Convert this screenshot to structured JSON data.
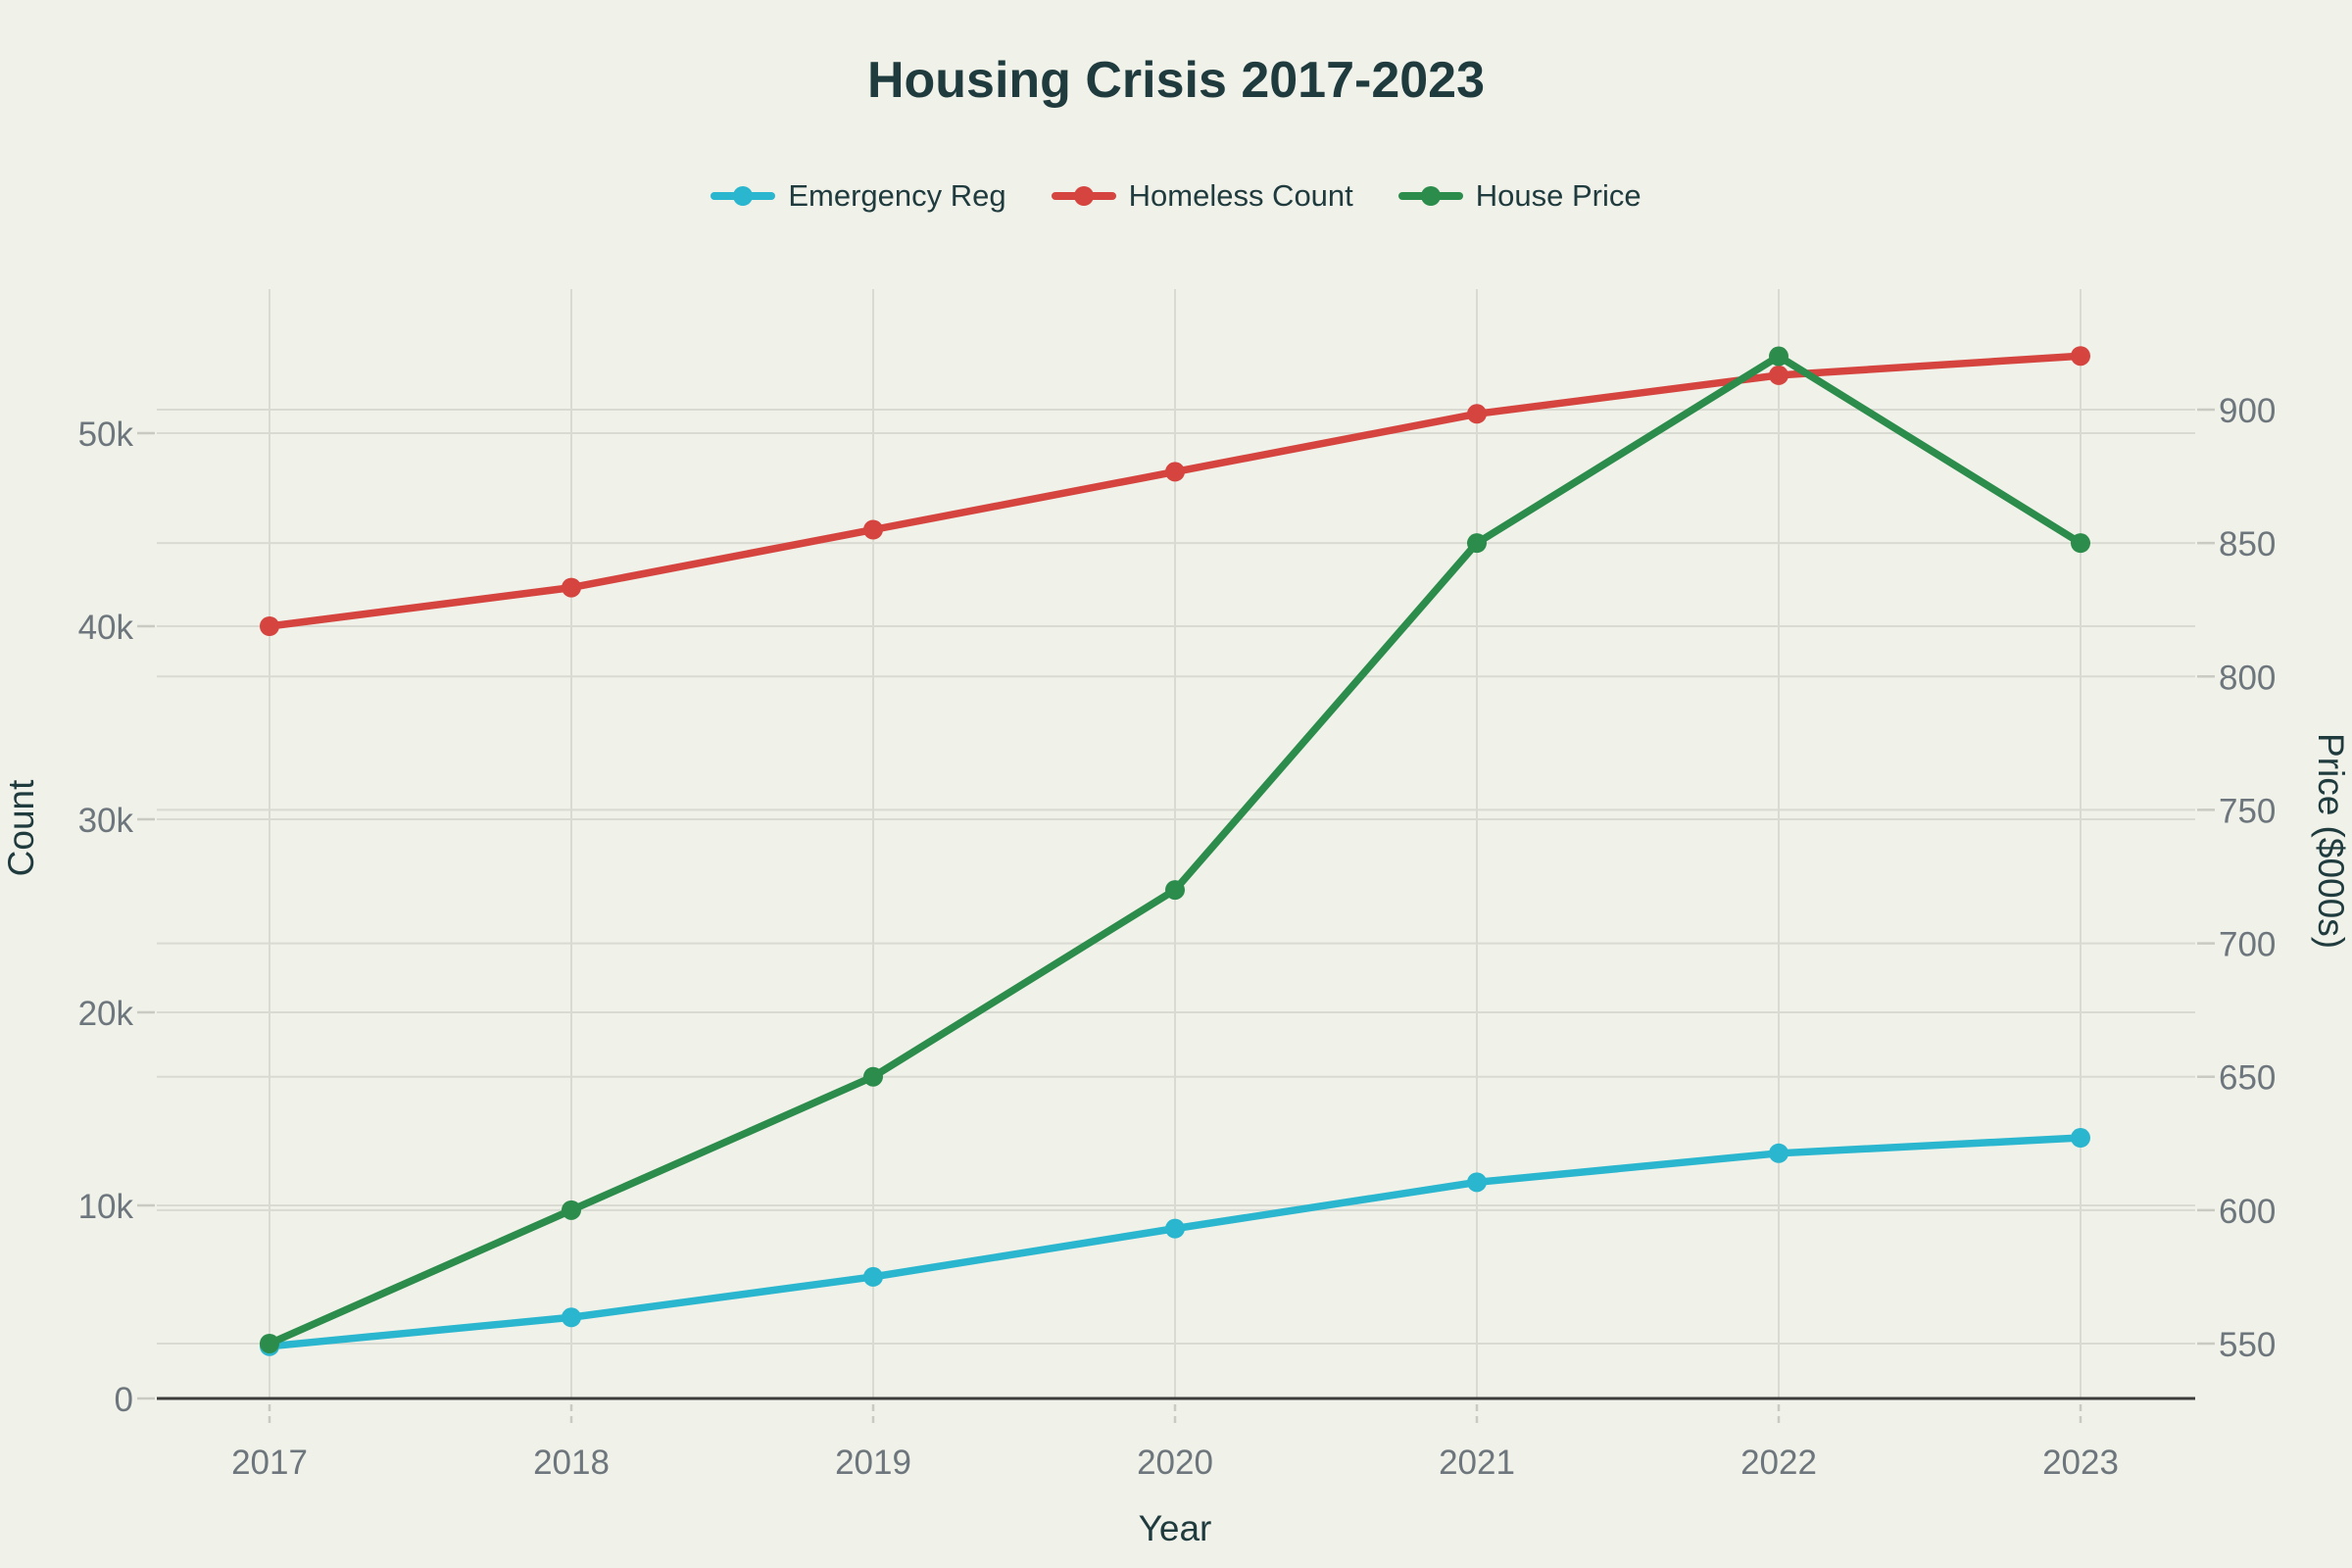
{
  "title": "Housing Crisis 2017-2023",
  "colors": {
    "background": "#f0f1e9",
    "title_text": "#1f3b3e",
    "tick_text": "#6d767c",
    "gridline": "#d9dad1",
    "axis_line": "#3d3d3b"
  },
  "chart_data": {
    "type": "line",
    "title": "Housing Crisis 2017-2023",
    "xlabel": "Year",
    "ylabel_left": "Count",
    "ylabel_right": "Price ($000s)",
    "categories": [
      "2017",
      "2018",
      "2019",
      "2020",
      "2021",
      "2022",
      "2023"
    ],
    "grid": true,
    "legend_position": "top",
    "series": [
      {
        "name": "Emergency Reg",
        "axis": "left",
        "color": "#2ab6ce",
        "values": [
          2700,
          4200,
          6300,
          8800,
          11200,
          12700,
          13500
        ]
      },
      {
        "name": "Homeless Count",
        "axis": "left",
        "color": "#d5443f",
        "values": [
          40000,
          42000,
          45000,
          48000,
          51000,
          53000,
          54000
        ]
      },
      {
        "name": "House Price",
        "axis": "right",
        "color": "#2c8c4b",
        "values": [
          550,
          600,
          650,
          720,
          850,
          920,
          850
        ]
      }
    ],
    "left_axis": {
      "range": [
        0,
        50000
      ],
      "ticks": [
        {
          "value": 0,
          "label": "0"
        },
        {
          "value": 10000,
          "label": "10k"
        },
        {
          "value": 20000,
          "label": "20k"
        },
        {
          "value": 30000,
          "label": "30k"
        },
        {
          "value": 40000,
          "label": "40k"
        },
        {
          "value": 50000,
          "label": "50k"
        }
      ]
    },
    "right_axis": {
      "range": [
        550,
        900
      ],
      "ticks": [
        {
          "value": 550,
          "label": "550"
        },
        {
          "value": 600,
          "label": "600"
        },
        {
          "value": 650,
          "label": "650"
        },
        {
          "value": 700,
          "label": "700"
        },
        {
          "value": 750,
          "label": "750"
        },
        {
          "value": 800,
          "label": "800"
        },
        {
          "value": 850,
          "label": "850"
        },
        {
          "value": 900,
          "label": "900"
        }
      ]
    }
  }
}
